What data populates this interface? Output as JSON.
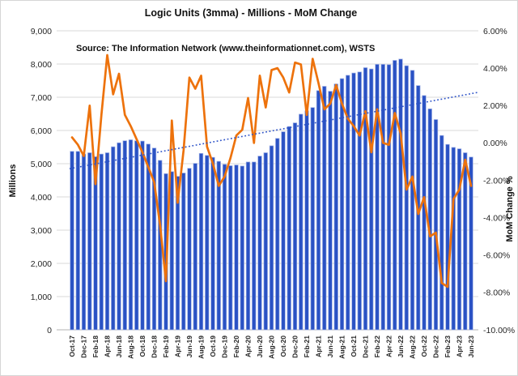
{
  "chart_data": {
    "type": "combo",
    "title": "Logic  Units (3mma) - Millions  - MoM Change",
    "source": "Source: The Information Network (www.theinformationnet.com), WSTS",
    "legend": "none",
    "grid": true,
    "categories": [
      "Oct-17",
      "Nov-17",
      "Dec-17",
      "Jan-18",
      "Feb-18",
      "Mar-18",
      "Apr-18",
      "May-18",
      "Jun-18",
      "Jul-18",
      "Aug-18",
      "Sep-18",
      "Oct-18",
      "Nov-18",
      "Dec-18",
      "Jan-19",
      "Feb-19",
      "Mar-19",
      "Apr-19",
      "May-19",
      "Jun-19",
      "Jul-19",
      "Aug-19",
      "Sep-19",
      "Oct-19",
      "Nov-19",
      "Dec-19",
      "Jan-20",
      "Feb-20",
      "Mar-20",
      "Apr-20",
      "May-20",
      "Jun-20",
      "Jul-20",
      "Aug-20",
      "Sep-20",
      "Oct-20",
      "Nov-20",
      "Dec-20",
      "Jan-21",
      "Feb-21",
      "Mar-21",
      "Apr-21",
      "May-21",
      "Jun-21",
      "Jul-21",
      "Aug-21",
      "Sep-21",
      "Oct-21",
      "Nov-21",
      "Dec-21",
      "Jan-22",
      "Feb-22",
      "Mar-22",
      "Apr-22",
      "May-22",
      "Jun-22",
      "Jul-22",
      "Aug-22",
      "Sep-22",
      "Oct-22",
      "Nov-22",
      "Dec-22",
      "Jan-23",
      "Feb-23",
      "Mar-23",
      "Apr-23",
      "May-23",
      "Jun-23"
    ],
    "x_label_every": 2,
    "series": [
      {
        "name": "Logic Units (3mma, millions)",
        "type": "bar",
        "axis": "left",
        "color": "#2A52C4",
        "edge_color": "#9FB0E6",
        "values": [
          5370,
          5370,
          5290,
          5330,
          5210,
          5290,
          5330,
          5510,
          5630,
          5690,
          5720,
          5690,
          5680,
          5590,
          5470,
          5100,
          4700,
          4760,
          4620,
          4720,
          4860,
          5010,
          5310,
          5250,
          5190,
          5070,
          4980,
          4940,
          4960,
          4930,
          5050,
          5050,
          5230,
          5330,
          5540,
          5760,
          5960,
          6120,
          6230,
          6490,
          6590,
          6690,
          7200,
          7330,
          7180,
          7400,
          7560,
          7660,
          7730,
          7760,
          7890,
          7850,
          7990,
          7990,
          7980,
          8110,
          8150,
          7950,
          7810,
          7350,
          7050,
          6650,
          6330,
          5850,
          5580,
          5490,
          5450,
          5330,
          5200
        ]
      },
      {
        "name": "MoM Change %",
        "type": "line",
        "axis": "right",
        "color": "#ED720C",
        "values": [
          0.3,
          -0.1,
          -0.7,
          2.0,
          -2.2,
          1.5,
          4.7,
          2.6,
          3.7,
          1.5,
          0.9,
          0.2,
          -0.5,
          -1.3,
          -2.1,
          -4.4,
          -7.4,
          1.2,
          -3.2,
          -0.4,
          3.5,
          2.9,
          3.6,
          -0.2,
          -1.1,
          -2.3,
          -1.8,
          -0.8,
          0.4,
          0.7,
          2.4,
          0.0,
          3.6,
          1.9,
          3.9,
          4.0,
          3.5,
          2.7,
          4.3,
          4.2,
          1.5,
          4.5,
          3.2,
          1.8,
          2.1,
          3.1,
          2.1,
          1.3,
          0.9,
          0.4,
          1.7,
          -0.5,
          1.8,
          0.0,
          -0.1,
          1.6,
          0.5,
          -2.5,
          -1.8,
          -3.8,
          -2.9,
          -5.0,
          -4.8,
          -7.5,
          -7.7,
          -3.0,
          -2.5,
          -0.9,
          -2.3
        ]
      },
      {
        "name": "linear-trend",
        "type": "trendline",
        "axis": "left",
        "color": "#2F54C8",
        "style": "dotted",
        "endpoints": [
          4850,
          7150
        ]
      }
    ],
    "left_axis": {
      "title": "Millions",
      "min": 0,
      "max": 9000,
      "step": 1000,
      "tick_labels": [
        "9,000",
        "8,000",
        "7,000",
        "6,000",
        "5,000",
        "4,000",
        "3,000",
        "2,000",
        "1,000",
        "0"
      ]
    },
    "right_axis": {
      "title": "MoM Change %",
      "min": -10,
      "max": 6,
      "step": 2,
      "tick_labels": [
        "6.00%",
        "4.00%",
        "2.00%",
        "0.00%",
        "-2.00%",
        "-4.00%",
        "-6.00%",
        "-8.00%",
        "-10.00%"
      ]
    }
  }
}
